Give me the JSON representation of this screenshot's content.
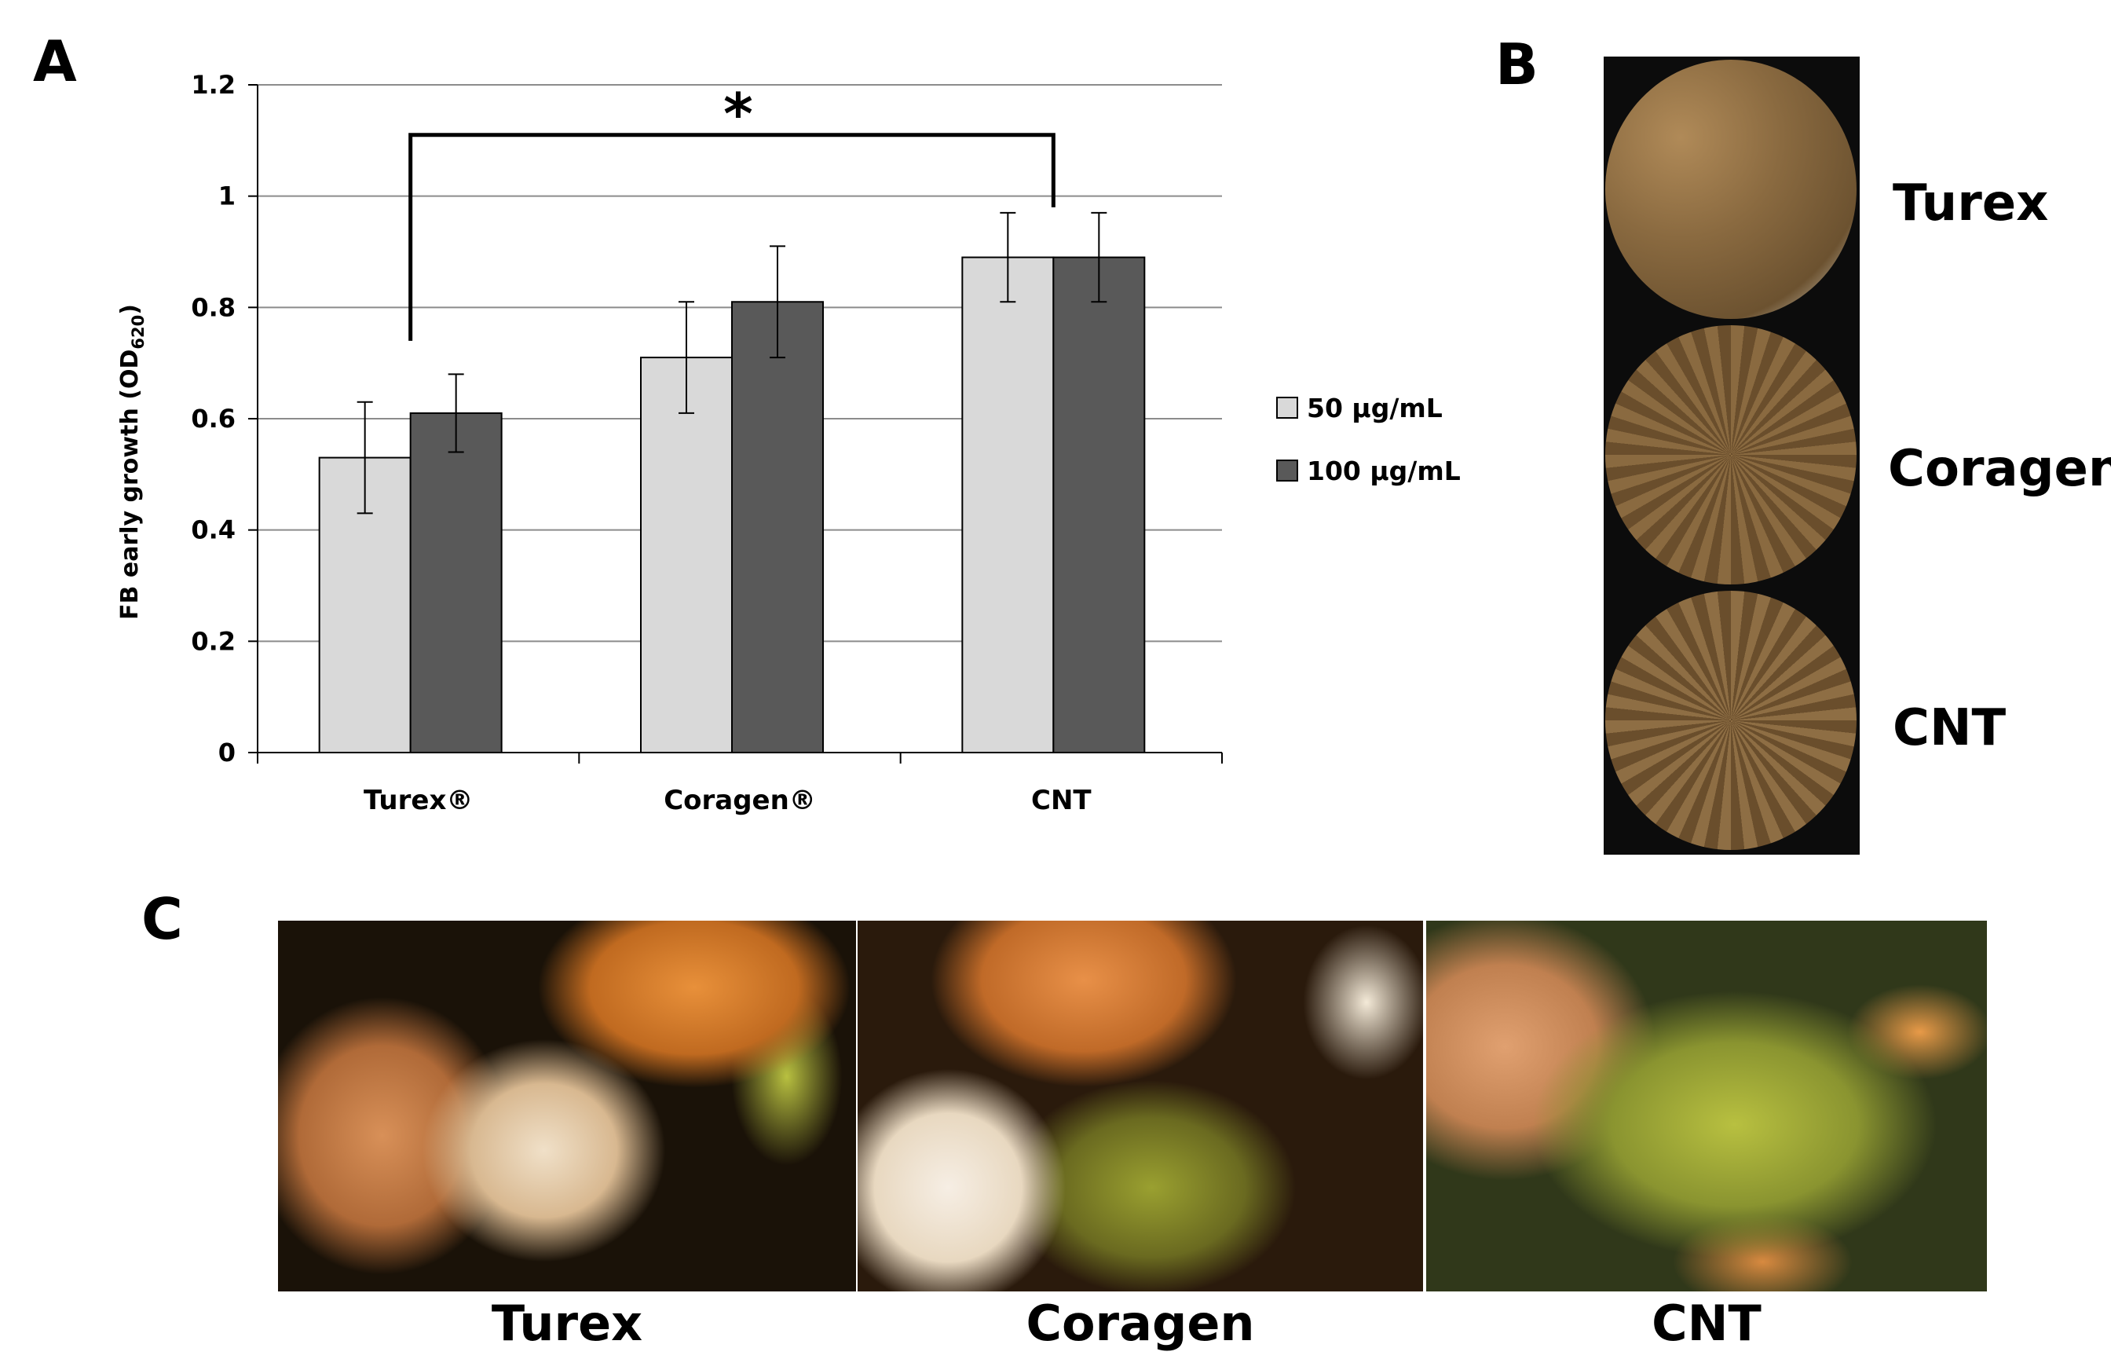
{
  "panels": {
    "a_label": "A",
    "b_label": "B",
    "c_label": "C"
  },
  "chart_data": {
    "type": "bar",
    "ylabel": "FB early growth (OD620)",
    "ylabel_base": "FB early growth (OD",
    "ylabel_sub": "620",
    "ylabel_close": ")",
    "ylim": [
      0,
      1.2
    ],
    "yticks": [
      "0",
      "0.2",
      "0.4",
      "0.6",
      "0.8",
      "1",
      "1.2"
    ],
    "categories": [
      "Turex®",
      "Coragen®",
      "CNT"
    ],
    "grid": true,
    "legend_position": "right",
    "series": [
      {
        "name": "50 µg/mL",
        "color": "#d9d9d9",
        "values": [
          0.53,
          0.71,
          0.89
        ],
        "errors": [
          0.1,
          0.1,
          0.08
        ]
      },
      {
        "name": "100 µg/mL",
        "color": "#595959",
        "values": [
          0.61,
          0.81,
          0.89
        ],
        "errors": [
          0.07,
          0.1,
          0.08
        ]
      }
    ],
    "significance": {
      "label": "*",
      "from": "Turex®",
      "to": "CNT"
    }
  },
  "panel_b": {
    "labels": [
      "Turex",
      "Coragen",
      "CNT"
    ]
  },
  "panel_c": {
    "labels": [
      "Turex",
      "Coragen",
      "CNT"
    ]
  },
  "colors": {
    "plate_bg": "#0c0c0c",
    "colony": "#8a6a40",
    "seed": "#d88030",
    "spores": "#b8c040"
  }
}
